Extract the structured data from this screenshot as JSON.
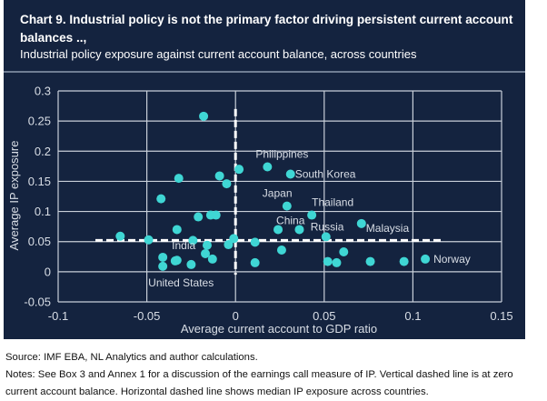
{
  "header": {
    "title": "Chart 9. Industrial policy is not the primary factor driving persistent current account balances ..,",
    "subtitle": "Industrial policy exposure against current account balance, across countries"
  },
  "footer": {
    "source": "Source: IMF EBA, NL Analytics and author calculations.",
    "notes": "Notes: See Box 3 and Annex 1 for a discussion of the earnings call measure of IP. Vertical dashed line is at zero current account balance. Horizontal dashed line shows median IP exposure across countries."
  },
  "colors": {
    "panel": "#14233f",
    "point": "#3fd6d4",
    "grid": "#c8cfd9",
    "text": "#d9dee6",
    "reference_line": "#ffffff"
  },
  "chart_data": {
    "type": "scatter",
    "title": "Industrial policy exposure against current account balance, across countries",
    "xlabel": "Average current account to GDP ratio",
    "ylabel": "Average IP exposure",
    "xlim": [
      -0.1,
      0.15
    ],
    "ylim": [
      -0.05,
      0.3
    ],
    "xticks": [
      -0.1,
      -0.05,
      0,
      0.05,
      0.1,
      0.15
    ],
    "xtick_labels": [
      "-0.1",
      "-0.05",
      "0",
      "0.05",
      "0.1",
      "0.15"
    ],
    "yticks": [
      -0.05,
      0,
      0.05,
      0.1,
      0.15,
      0.2,
      0.25,
      0.3
    ],
    "ytick_labels": [
      "-0.05",
      "0",
      "0.05",
      "0.1",
      "0.15",
      "0.2",
      "0.25",
      "0.3"
    ],
    "grid": true,
    "reference_lines": {
      "vertical": {
        "x": 0,
        "y_from": -0.005,
        "y_to": 0.27,
        "label": "zero current account balance"
      },
      "horizontal": {
        "y": 0.052,
        "x_from": -0.079,
        "x_to": 0.117,
        "label": "median IP exposure"
      }
    },
    "points": [
      {
        "x": -0.018,
        "y": 0.258,
        "label": ""
      },
      {
        "x": -0.032,
        "y": 0.155,
        "label": ""
      },
      {
        "x": -0.009,
        "y": 0.159,
        "label": ""
      },
      {
        "x": -0.005,
        "y": 0.146,
        "label": ""
      },
      {
        "x": 0.002,
        "y": 0.17,
        "label": ""
      },
      {
        "x": -0.042,
        "y": 0.121,
        "label": ""
      },
      {
        "x": -0.021,
        "y": 0.091,
        "label": ""
      },
      {
        "x": -0.014,
        "y": 0.094,
        "label": ""
      },
      {
        "x": -0.011,
        "y": 0.094,
        "label": ""
      },
      {
        "x": -0.033,
        "y": 0.07,
        "label": ""
      },
      {
        "x": -0.065,
        "y": 0.059,
        "label": ""
      },
      {
        "x": -0.049,
        "y": 0.053,
        "label": ""
      },
      {
        "x": -0.024,
        "y": 0.052,
        "label": ""
      },
      {
        "x": -0.016,
        "y": 0.044,
        "label": ""
      },
      {
        "x": -0.017,
        "y": 0.03,
        "label": ""
      },
      {
        "x": -0.013,
        "y": 0.021,
        "label": ""
      },
      {
        "x": -0.041,
        "y": 0.024,
        "label": "India"
      },
      {
        "x": -0.041,
        "y": 0.009,
        "label": "United States"
      },
      {
        "x": -0.034,
        "y": 0.018,
        "label": ""
      },
      {
        "x": -0.033,
        "y": 0.019,
        "label": ""
      },
      {
        "x": -0.025,
        "y": 0.012,
        "label": ""
      },
      {
        "x": -0.004,
        "y": 0.045,
        "label": ""
      },
      {
        "x": -0.001,
        "y": 0.055,
        "label": ""
      },
      {
        "x": 0.011,
        "y": 0.049,
        "label": ""
      },
      {
        "x": 0.011,
        "y": 0.015,
        "label": ""
      },
      {
        "x": 0.018,
        "y": 0.174,
        "label": "Philippines"
      },
      {
        "x": 0.031,
        "y": 0.162,
        "label": "South Korea"
      },
      {
        "x": 0.029,
        "y": 0.109,
        "label": "Japan"
      },
      {
        "x": 0.043,
        "y": 0.094,
        "label": "Thailand"
      },
      {
        "x": 0.024,
        "y": 0.07,
        "label": "China"
      },
      {
        "x": 0.036,
        "y": 0.07,
        "label": ""
      },
      {
        "x": 0.051,
        "y": 0.058,
        "label": "Russia"
      },
      {
        "x": 0.026,
        "y": 0.036,
        "label": ""
      },
      {
        "x": 0.061,
        "y": 0.033,
        "label": ""
      },
      {
        "x": 0.052,
        "y": 0.017,
        "label": ""
      },
      {
        "x": 0.057,
        "y": 0.015,
        "label": ""
      },
      {
        "x": 0.071,
        "y": 0.08,
        "label": "Malaysia"
      },
      {
        "x": 0.076,
        "y": 0.017,
        "label": ""
      },
      {
        "x": 0.095,
        "y": 0.017,
        "label": ""
      },
      {
        "x": 0.107,
        "y": 0.021,
        "label": "Norway"
      }
    ]
  }
}
